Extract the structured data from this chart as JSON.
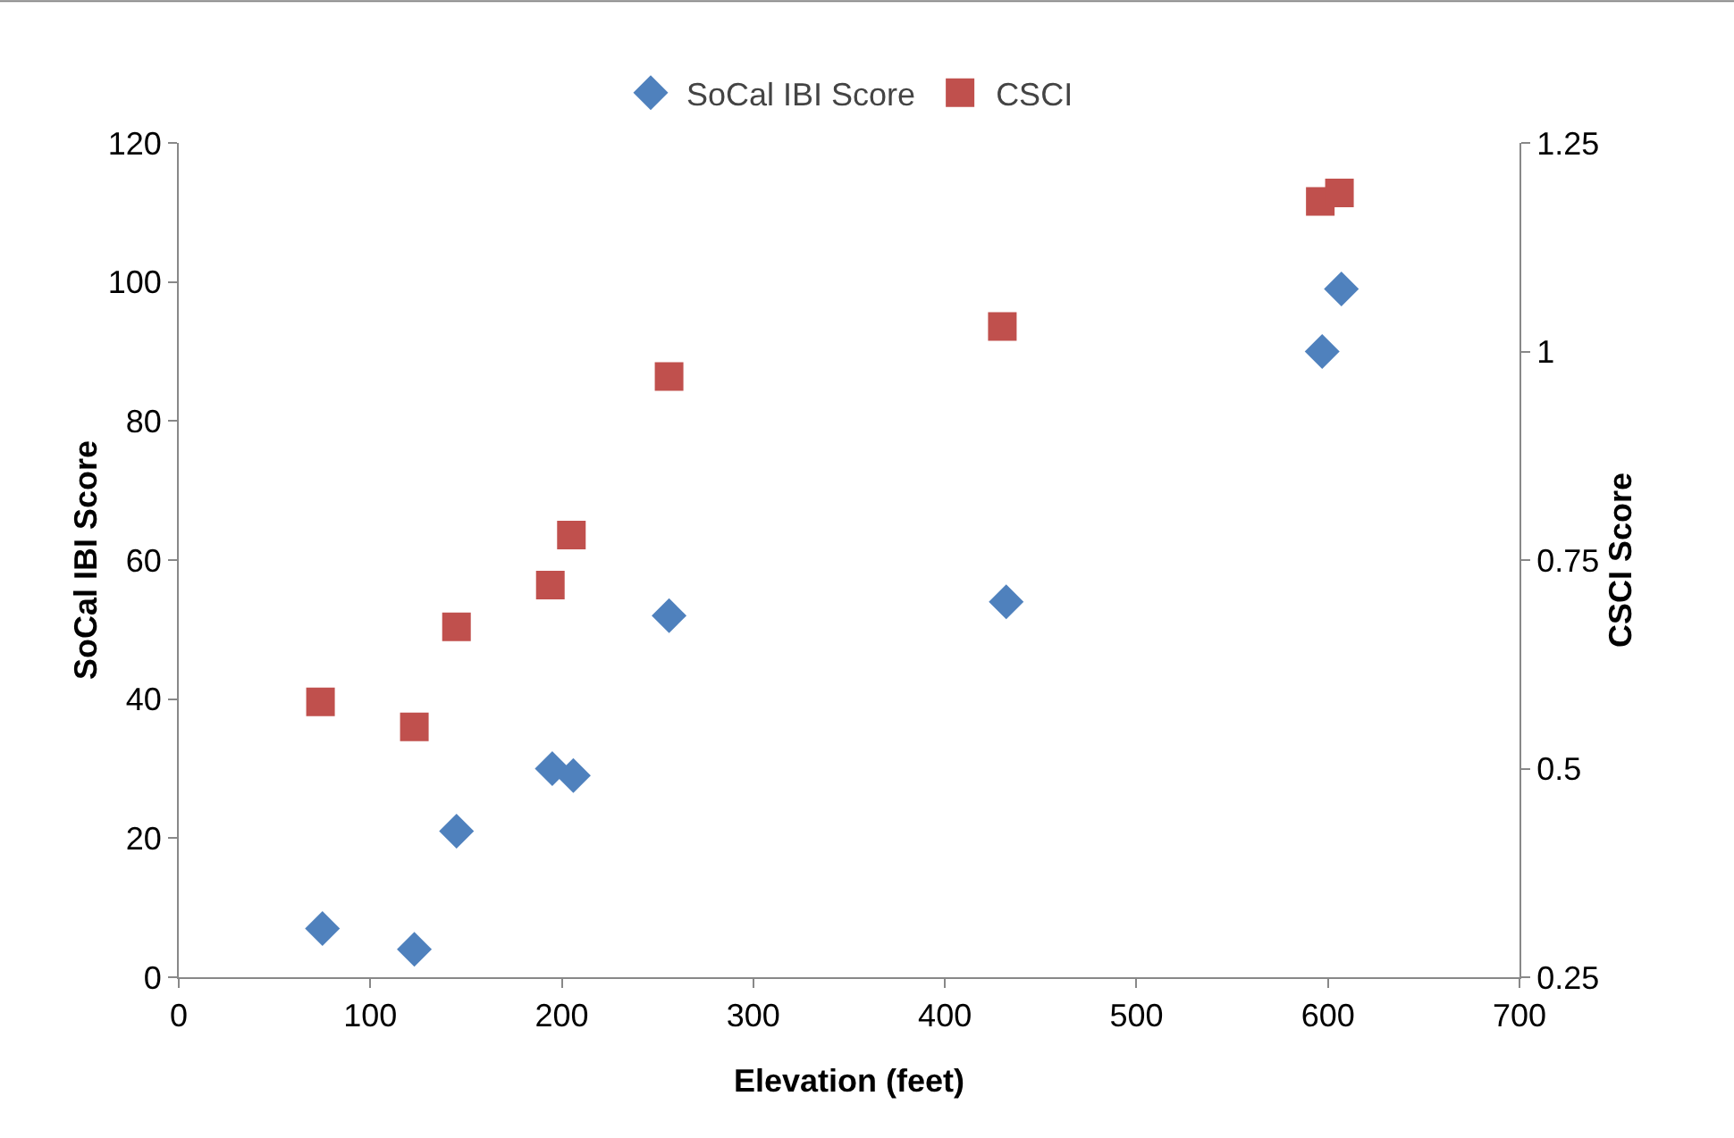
{
  "chart_data": {
    "type": "scatter",
    "xlabel": "Elevation (feet)",
    "ylabel": "SoCal IBI Score",
    "y2label": "CSCI Score",
    "xlim": [
      0,
      700
    ],
    "xticks": [
      0,
      100,
      200,
      300,
      400,
      500,
      600,
      700
    ],
    "ylim": [
      0,
      120
    ],
    "yticks": [
      0,
      20,
      40,
      60,
      80,
      100,
      120
    ],
    "y2lim": [
      0.25,
      1.25
    ],
    "y2ticks": [
      0.25,
      0.5,
      0.75,
      1,
      1.25
    ],
    "grid": false,
    "legend": "top",
    "series": [
      {
        "name": "SoCal IBI Score",
        "color": "#4f81bd",
        "marker": "diamond",
        "x": [
          75,
          123,
          145,
          195,
          206,
          256,
          432,
          597,
          607
        ],
        "values": [
          7,
          4,
          21,
          30,
          29,
          52,
          54,
          90,
          99
        ]
      },
      {
        "name": "CSCI",
        "color": "#c0504d",
        "marker": "square",
        "axis": "y2",
        "x": [
          74,
          123,
          145,
          194,
          205,
          256,
          430,
          596,
          606
        ],
        "values": [
          0.58,
          0.55,
          0.67,
          0.72,
          0.78,
          0.97,
          1.03,
          1.18,
          1.19
        ]
      }
    ]
  }
}
